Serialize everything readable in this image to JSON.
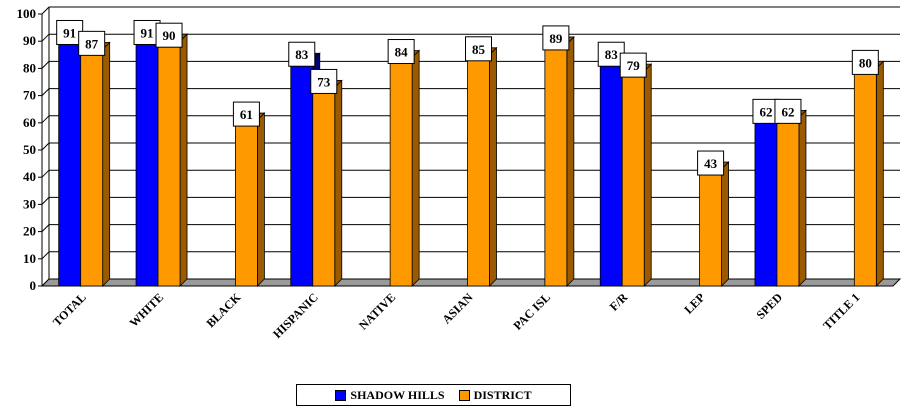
{
  "chart_data": {
    "type": "bar",
    "categories": [
      "TOTAL",
      "WHITE",
      "BLACK",
      "HISPANIC",
      "NATIVE",
      "ASIAN",
      "PAC ISL",
      "F/R",
      "LEP",
      "SPED",
      "TITLE 1"
    ],
    "series": [
      {
        "name": "SHADOW HILLS",
        "color": "#0000ff",
        "side": "#00007a",
        "values": [
          91,
          91,
          null,
          83,
          null,
          null,
          null,
          83,
          null,
          62,
          null
        ]
      },
      {
        "name": "DISTRICT",
        "color": "#ff9900",
        "side": "#9a5a00",
        "values": [
          87,
          90,
          61,
          73,
          84,
          85,
          89,
          79,
          43,
          62,
          80
        ]
      }
    ],
    "ylim": [
      0,
      100
    ],
    "yticks": [
      "0",
      "10",
      "20",
      "30",
      "40",
      "50",
      "60",
      "70",
      "80",
      "90",
      "100"
    ],
    "grid": true,
    "legend_position": "bottom"
  }
}
